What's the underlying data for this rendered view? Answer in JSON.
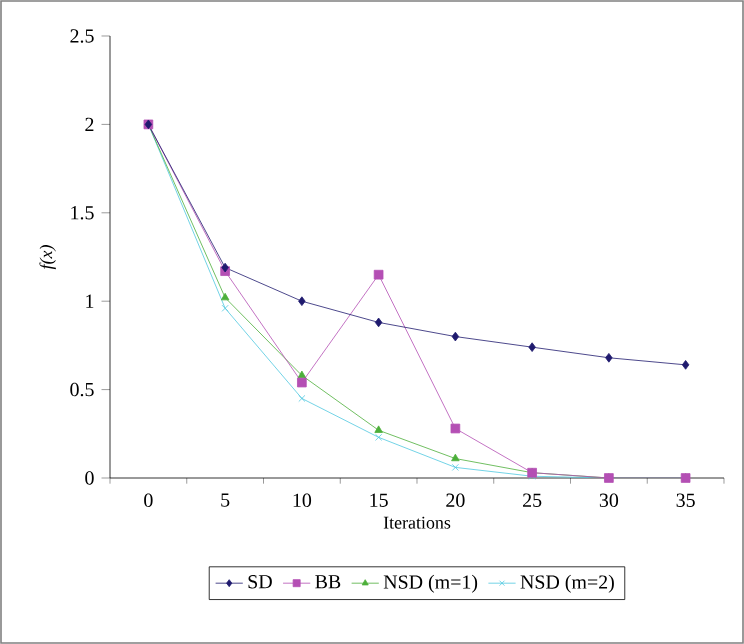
{
  "chart_data": {
    "type": "line",
    "xlabel": "Iterations",
    "ylabel": "f(x)",
    "categories": [
      "0",
      "5",
      "10",
      "15",
      "20",
      "25",
      "30",
      "35"
    ],
    "ylim": [
      0,
      2.5
    ],
    "yticks": [
      0,
      0.5,
      1,
      1.5,
      2,
      2.5
    ],
    "legend": "bottom",
    "series": [
      {
        "name": "SD",
        "color": "#1f1a6e",
        "marker": "diamond",
        "values": [
          2,
          1.19,
          1.0,
          0.88,
          0.8,
          0.74,
          0.68,
          0.64
        ]
      },
      {
        "name": "BB",
        "color": "#b44fb4",
        "marker": "square",
        "values": [
          2,
          1.17,
          0.54,
          1.15,
          0.28,
          0.03,
          0,
          0
        ]
      },
      {
        "name": "NSD (m=1)",
        "color": "#4caf3a",
        "marker": "triangle",
        "values": [
          2,
          1.02,
          0.58,
          0.27,
          0.11,
          0.03,
          0,
          0
        ]
      },
      {
        "name": "NSD (m=2)",
        "color": "#4fc8e0",
        "marker": "cross",
        "values": [
          2,
          0.96,
          0.45,
          0.23,
          0.06,
          0.01,
          0,
          0
        ]
      }
    ]
  }
}
